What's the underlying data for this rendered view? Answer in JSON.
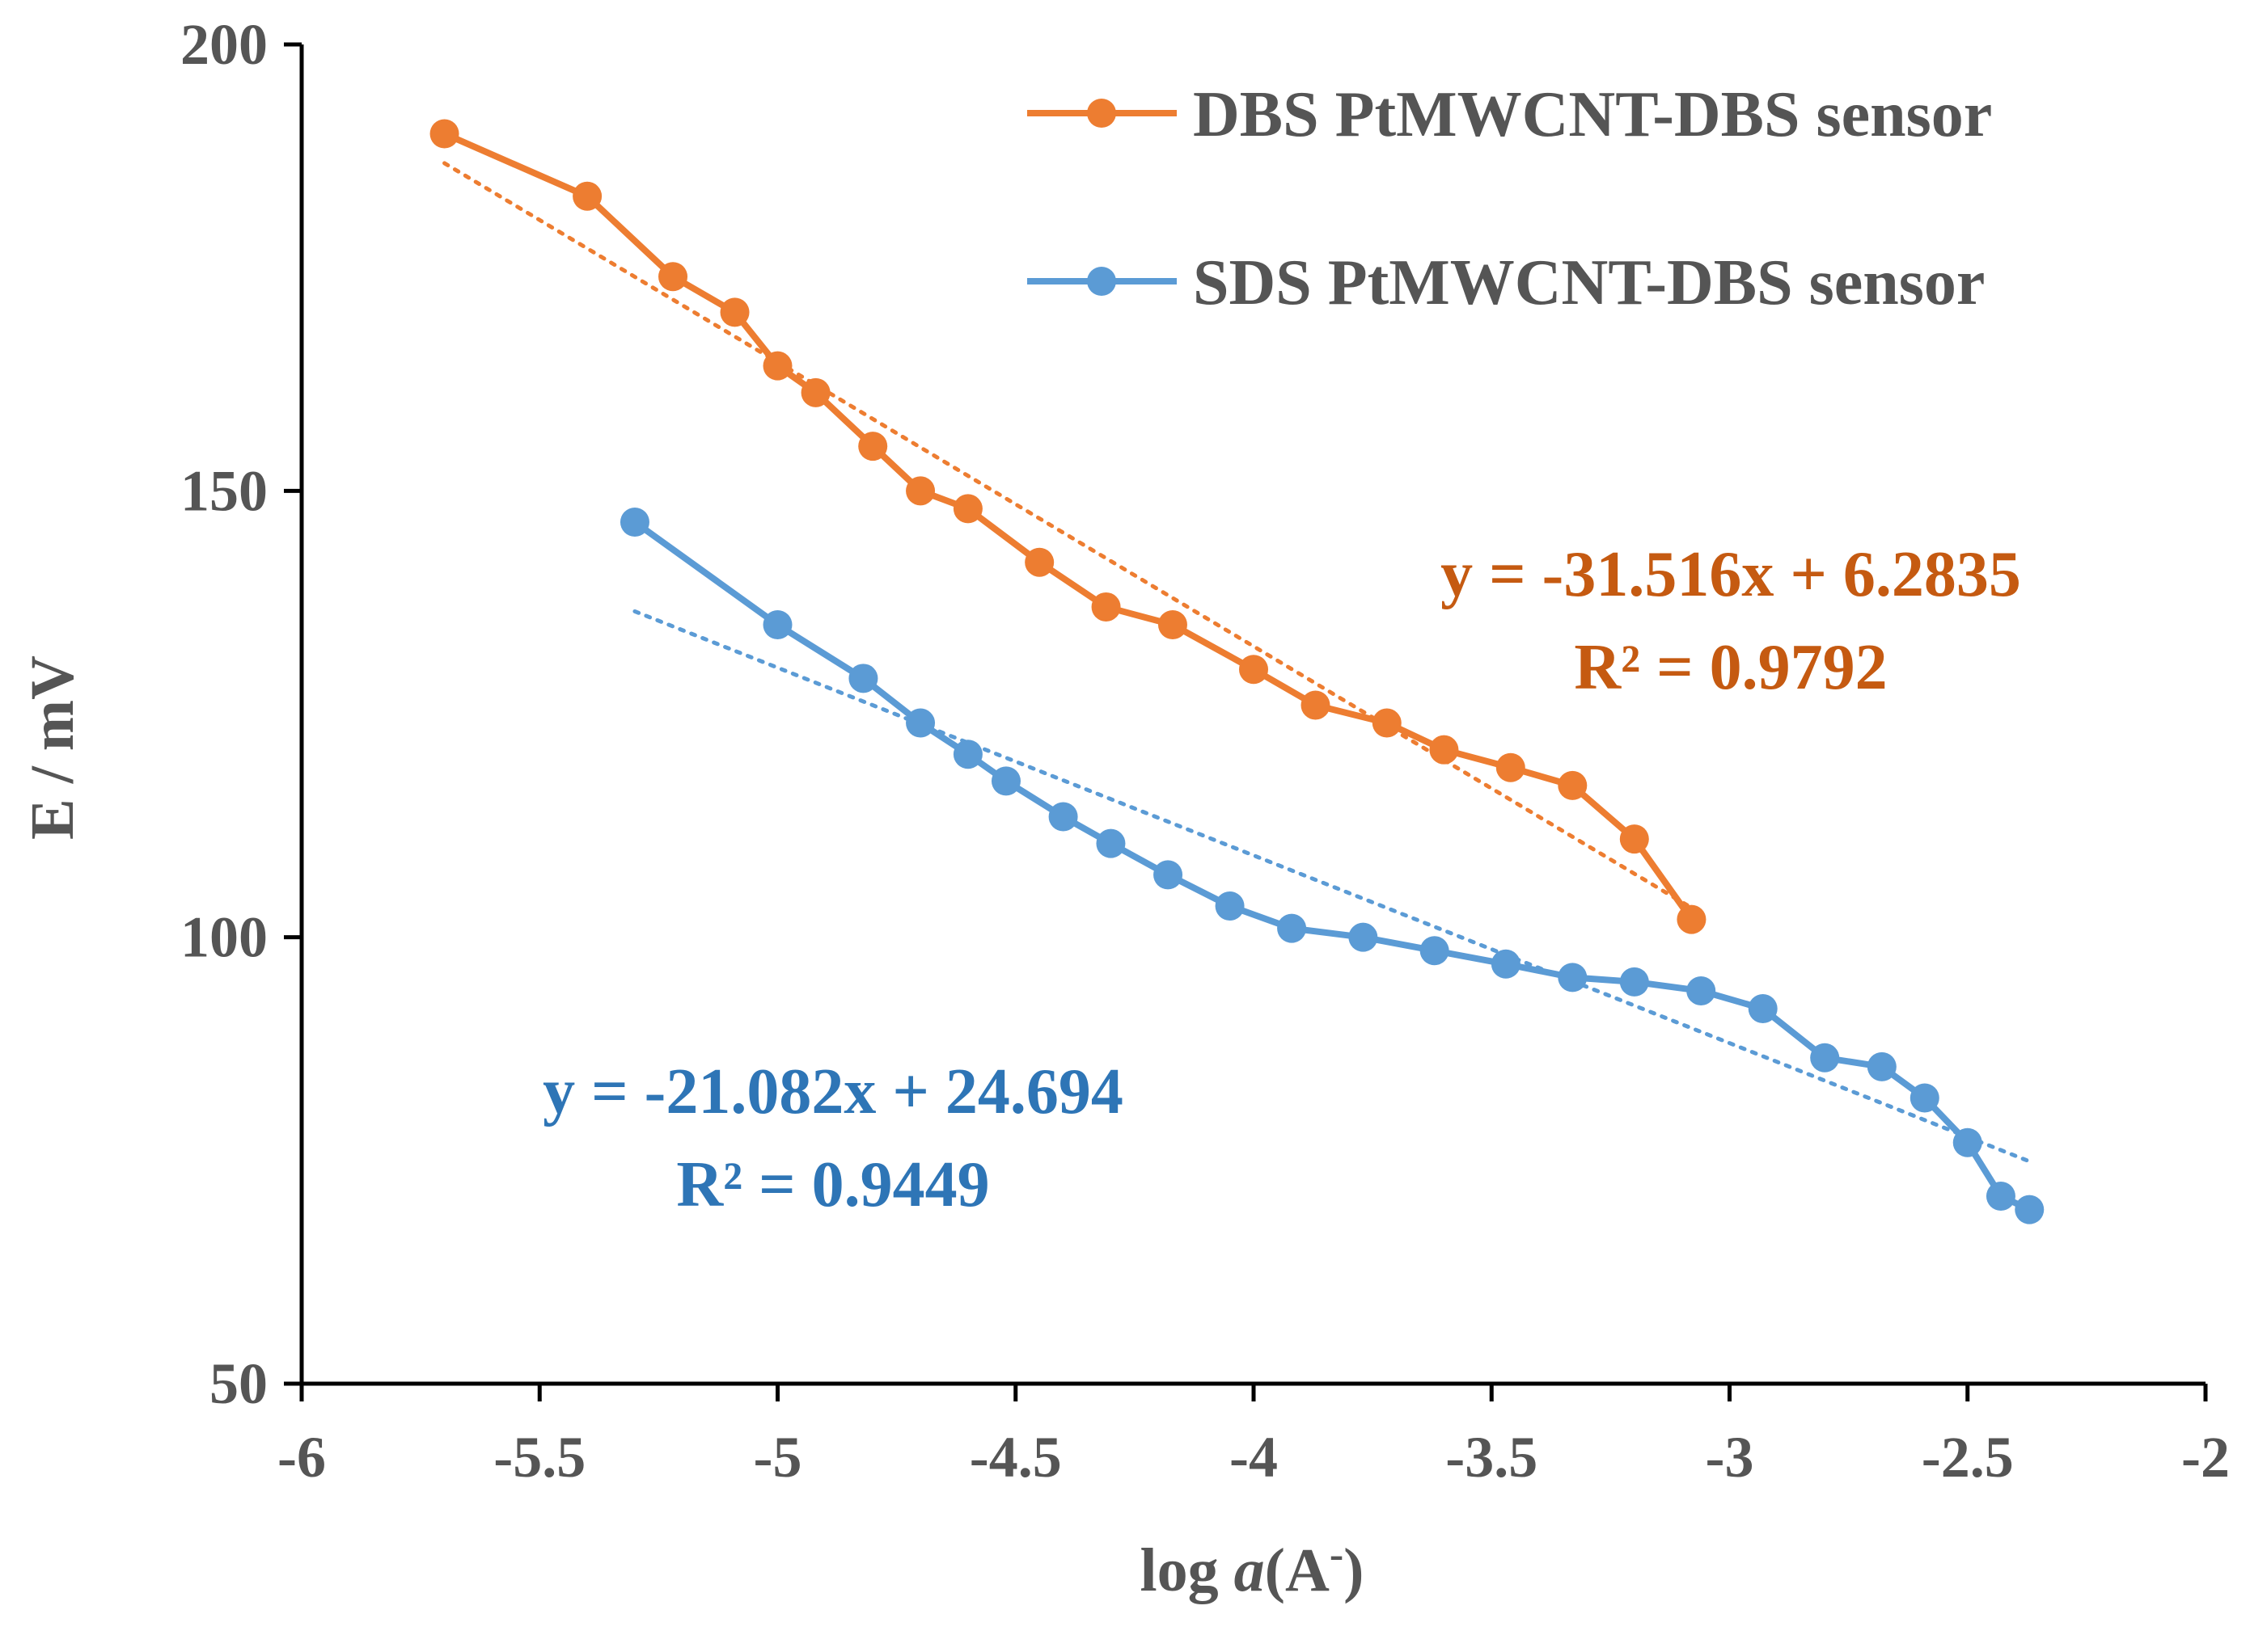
{
  "chart_data": {
    "type": "line",
    "title": "",
    "xlabel": {
      "prefix": "log ",
      "var": "a",
      "open": "(A",
      "sup": "-",
      "close": ")"
    },
    "ylabel": "E / mV",
    "xlim": [
      -6,
      -2
    ],
    "ylim": [
      50,
      200
    ],
    "x_ticks": [
      -6,
      -5.5,
      -5,
      -4.5,
      -4,
      -3.5,
      -3,
      -2.5,
      -2
    ],
    "x_tick_labels": [
      "-6",
      "-5.5",
      "-5",
      "-4.5",
      "-4",
      "-3.5",
      "-3",
      "-2.5",
      "-2"
    ],
    "y_ticks": [
      50,
      100,
      150,
      200
    ],
    "y_tick_labels": [
      "50",
      "100",
      "150",
      "200"
    ],
    "grid": false,
    "legend_position": "top-right",
    "series": [
      {
        "name": "DBS PtMWCNT-DBS sensor",
        "color": "#ED7D31",
        "x": [
          -5.7,
          -5.4,
          -5.22,
          -5.09,
          -5.0,
          -4.92,
          -4.8,
          -4.7,
          -4.6,
          -4.45,
          -4.31,
          -4.17,
          -4.0,
          -3.87,
          -3.72,
          -3.6,
          -3.46,
          -3.33,
          -3.2,
          -3.08
        ],
        "y": [
          190,
          183,
          174,
          170,
          164,
          161,
          155,
          150,
          148,
          142,
          137,
          135,
          130,
          126,
          124,
          121,
          119,
          117,
          111,
          102
        ],
        "trendline": {
          "equation": "y = -31.516x + 6.2835",
          "r2": "R² = 0.9792",
          "x_range": [
            -5.7,
            -3.08
          ],
          "y_range": [
            186.7,
            103.3
          ]
        }
      },
      {
        "name": "SDS PtMWCNT-DBS sensor",
        "color": "#5B9BD5",
        "x": [
          -5.3,
          -5.0,
          -4.82,
          -4.7,
          -4.6,
          -4.52,
          -4.4,
          -4.3,
          -4.18,
          -4.05,
          -3.92,
          -3.77,
          -3.62,
          -3.47,
          -3.33,
          -3.2,
          -3.06,
          -2.93,
          -2.8,
          -2.68,
          -2.59,
          -2.5,
          -2.43,
          -2.37
        ],
        "y": [
          146.5,
          135,
          129,
          124,
          120.5,
          117.5,
          113.5,
          110.5,
          107,
          103.5,
          101,
          100,
          98.5,
          97,
          95.5,
          95,
          94,
          92,
          86.5,
          85.5,
          82,
          77,
          71,
          69.5
        ],
        "trendline": {
          "equation": "y = -21.082x + 24.694",
          "r2": "R² = 0.9449",
          "x_range": [
            -5.3,
            -2.37
          ],
          "y_range": [
            136.5,
            74.9
          ]
        }
      }
    ]
  }
}
